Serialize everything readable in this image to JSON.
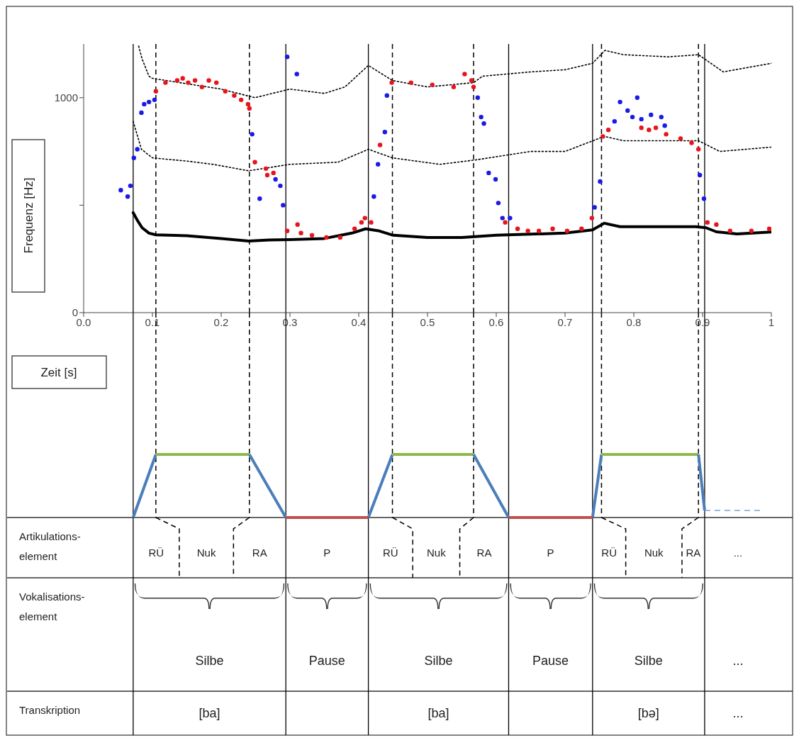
{
  "chart_data": {
    "type": "line",
    "xlabel": "Zeit [s]",
    "ylabel": "Frequenz [Hz]",
    "xlim": [
      0,
      1
    ],
    "ylim": [
      0,
      1250
    ],
    "xticks": [
      {
        "value": 0,
        "label": "0.0"
      },
      0.1,
      0.2,
      0.3,
      0.4,
      0.5,
      0.6,
      0.7,
      0.8,
      0.9,
      1
    ],
    "yticks": [
      0,
      {
        "value": 500,
        "label": null
      },
      1000
    ],
    "series": [
      {
        "color": "#000000",
        "line_style": "solid",
        "marker": "none",
        "x": [
          0.072,
          0.078,
          0.085,
          0.095,
          0.105,
          0.15,
          0.2,
          0.24,
          0.27,
          0.3,
          0.35,
          0.39,
          0.41,
          0.43,
          0.45,
          0.5,
          0.55,
          0.6,
          0.65,
          0.7,
          0.74,
          0.757,
          0.78,
          0.85,
          0.89,
          0.905,
          0.92,
          0.95,
          1.0
        ],
        "values": [
          465,
          430,
          395,
          370,
          362,
          358,
          345,
          333,
          338,
          340,
          345,
          370,
          390,
          380,
          360,
          350,
          350,
          360,
          365,
          370,
          385,
          416,
          400,
          400,
          400,
          395,
          376,
          366,
          375
        ]
      },
      {
        "color": "#000000",
        "line_style": "dotted",
        "marker": "none",
        "x": [
          0.08,
          0.085,
          0.095,
          0.1,
          0.12,
          0.2,
          0.249,
          0.3,
          0.35,
          0.38,
          0.414,
          0.449,
          0.5,
          0.567,
          0.58,
          0.65,
          0.7,
          0.74,
          0.758,
          0.785,
          0.85,
          0.894,
          0.93,
          1.0
        ],
        "values": [
          1240,
          1180,
          1100,
          1090,
          1080,
          1040,
          1000,
          1040,
          1020,
          1050,
          1150,
          1080,
          1050,
          1070,
          1100,
          1120,
          1130,
          1160,
          1220,
          1200,
          1190,
          1200,
          1120,
          1160
        ]
      },
      {
        "color": "#000000",
        "line_style": "dotted",
        "marker": "none",
        "x": [
          0.072,
          0.084,
          0.1,
          0.15,
          0.188,
          0.24,
          0.3,
          0.37,
          0.414,
          0.449,
          0.518,
          0.569,
          0.65,
          0.7,
          0.757,
          0.785,
          0.894,
          0.925,
          1.0
        ],
        "values": [
          890,
          760,
          720,
          705,
          690,
          660,
          690,
          700,
          760,
          720,
          690,
          710,
          750,
          750,
          820,
          800,
          800,
          750,
          770
        ]
      },
      {
        "type": "scatter",
        "color": "#e8141c",
        "marker": "circle",
        "x": [
          0.105,
          0.119,
          0.136,
          0.144,
          0.152,
          0.162,
          0.172,
          0.182,
          0.193,
          0.206,
          0.219,
          0.229,
          0.239,
          0.241,
          0.249,
          0.265,
          0.267,
          0.276,
          0.296,
          0.311,
          0.316,
          0.332,
          0.353,
          0.373,
          0.394,
          0.404,
          0.409,
          0.418,
          0.431,
          0.448,
          0.476,
          0.507,
          0.538,
          0.554,
          0.564,
          0.567,
          0.613,
          0.631,
          0.646,
          0.662,
          0.682,
          0.703,
          0.724,
          0.739,
          0.755,
          0.763,
          0.811,
          0.822,
          0.832,
          0.847,
          0.868,
          0.884,
          0.894,
          0.907,
          0.92,
          0.94,
          0.971,
          0.997
        ],
        "values": [
          1030,
          1070,
          1080,
          1090,
          1070,
          1080,
          1050,
          1080,
          1070,
          1030,
          1010,
          990,
          970,
          950,
          700,
          670,
          640,
          650,
          380,
          410,
          370,
          360,
          350,
          350,
          390,
          420,
          440,
          420,
          780,
          1070,
          1070,
          1060,
          1050,
          1110,
          1080,
          1050,
          420,
          390,
          380,
          380,
          390,
          380,
          390,
          440,
          820,
          850,
          860,
          850,
          860,
          830,
          810,
          790,
          760,
          420,
          410,
          380,
          380,
          390
        ]
      },
      {
        "type": "scatter",
        "color": "#1a1ae6",
        "marker": "circle",
        "x": [
          0.054,
          0.064,
          0.068,
          0.073,
          0.078,
          0.084,
          0.088,
          0.095,
          0.103,
          0.245,
          0.256,
          0.279,
          0.286,
          0.29,
          0.296,
          0.31,
          0.422,
          0.428,
          0.438,
          0.441,
          0.573,
          0.578,
          0.582,
          0.589,
          0.599,
          0.603,
          0.609,
          0.62,
          0.743,
          0.751,
          0.772,
          0.78,
          0.791,
          0.798,
          0.805,
          0.811,
          0.825,
          0.84,
          0.845,
          0.896,
          0.902
        ],
        "values": [
          570,
          540,
          590,
          720,
          760,
          930,
          970,
          980,
          990,
          830,
          530,
          620,
          590,
          500,
          1190,
          1110,
          540,
          690,
          840,
          1010,
          1000,
          910,
          880,
          650,
          620,
          510,
          440,
          440,
          490,
          610,
          890,
          980,
          940,
          910,
          1000,
          900,
          920,
          910,
          870,
          640,
          530
        ]
      }
    ],
    "ref_lines": [
      {
        "axis": "x",
        "value": 0.072,
        "line_style": "solid",
        "color": "#000000"
      },
      {
        "axis": "x",
        "value": 0.105,
        "line_style": "dashed",
        "color": "#000000"
      },
      {
        "axis": "x",
        "value": 0.241,
        "line_style": "dashed",
        "color": "#000000"
      },
      {
        "axis": "x",
        "value": 0.294,
        "line_style": "solid",
        "color": "#000000"
      },
      {
        "axis": "x",
        "value": 0.414,
        "line_style": "solid",
        "color": "#000000"
      },
      {
        "axis": "x",
        "value": 0.449,
        "line_style": "dashed",
        "color": "#000000"
      },
      {
        "axis": "x",
        "value": 0.567,
        "line_style": "dashed",
        "color": "#000000"
      },
      {
        "axis": "x",
        "value": 0.618,
        "line_style": "solid",
        "color": "#000000"
      },
      {
        "axis": "x",
        "value": 0.74,
        "line_style": "solid",
        "color": "#000000"
      },
      {
        "axis": "x",
        "value": 0.753,
        "line_style": "dashed",
        "color": "#000000"
      },
      {
        "axis": "x",
        "value": 0.894,
        "line_style": "dashed",
        "color": "#000000"
      },
      {
        "axis": "x",
        "value": 0.903,
        "line_style": "solid",
        "color": "#000000"
      }
    ],
    "annotations": [
      "Artikulations-\nelement",
      "RÜ",
      "Nuk",
      "RA",
      "P",
      "RÜ",
      "Nuk",
      "RA",
      "P",
      "RÜ",
      "Nuk",
      "RA",
      "...",
      "Vokalisations-\nelement",
      "Silbe",
      "Pause",
      "Silbe",
      "Pause",
      "Silbe",
      "...",
      "Transkription",
      "[ba]",
      "[ba]",
      "[bə]",
      "..."
    ]
  }
}
